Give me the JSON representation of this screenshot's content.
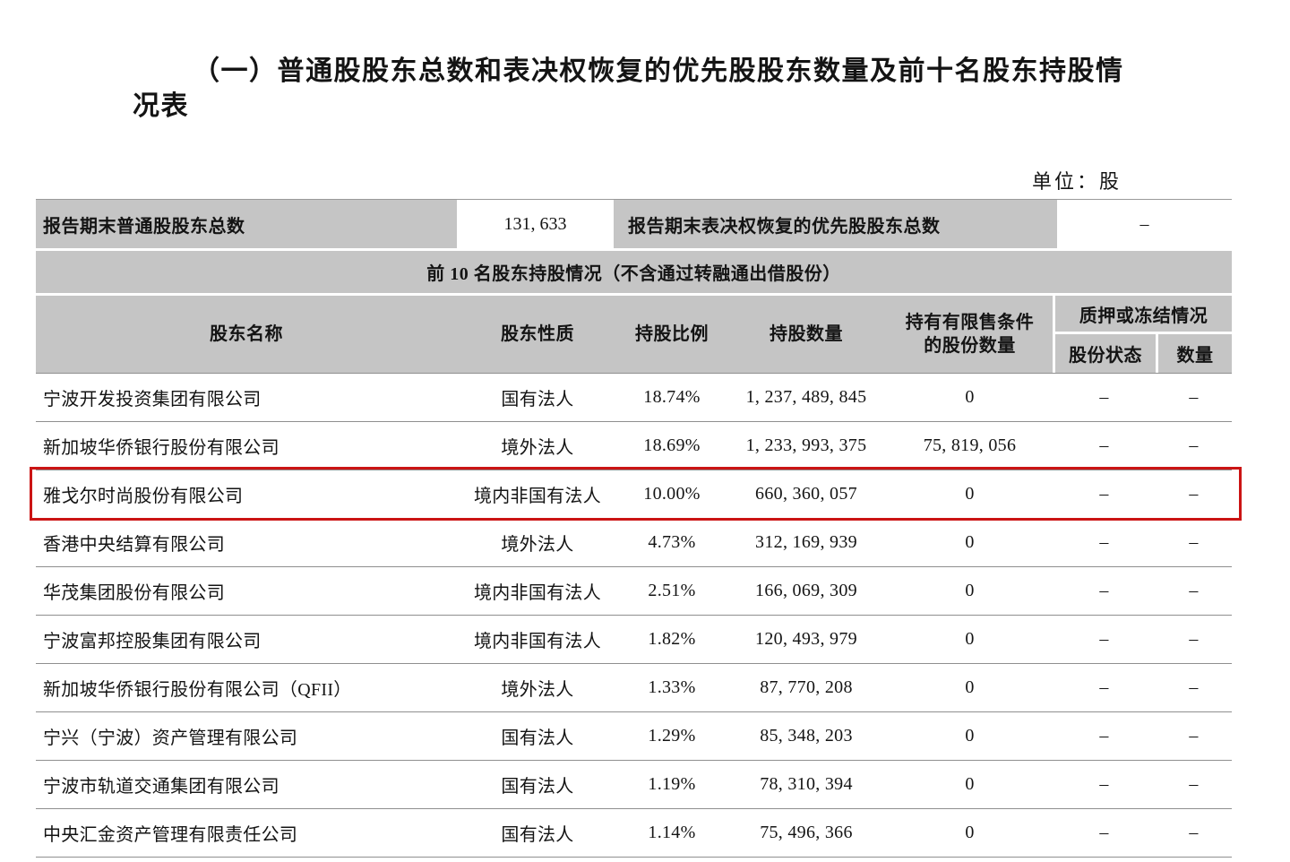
{
  "page": {
    "title_line1": "（一）普通股股东总数和表决权恢复的优先股股东数量及前十名股东持股情",
    "title_line2": "况表",
    "unit_label": "单位：股"
  },
  "colors": {
    "header_bg": "#c5c5c5",
    "highlight_border": "#cb1414",
    "row_line": "#8f8f8f"
  },
  "summary_row": {
    "common_label": "报告期末普通股股东总数",
    "common_value": "131, 633",
    "preferred_label": "报告期末表决权恢复的优先股股东总数",
    "preferred_value": "–"
  },
  "section_header": "前 10 名股东持股情况（不含通过转融通出借股份）",
  "table": {
    "col_name": "股东名称",
    "col_nature": "股东性质",
    "col_ratio": "持股比例",
    "col_shares": "持股数量",
    "col_restricted_l1": "持有有限售条件",
    "col_restricted_l2": "的股份数量",
    "col_pledge_group": "质押或冻结情况",
    "col_pledge_status": "股份状态",
    "col_pledge_qty": "数量"
  },
  "rows": [
    {
      "name": "宁波开发投资集团有限公司",
      "nature": "国有法人",
      "ratio": "18.74%",
      "shares": "1, 237, 489, 845",
      "restricted": "0",
      "status": "–",
      "qty": "–"
    },
    {
      "name": "新加坡华侨银行股份有限公司",
      "nature": "境外法人",
      "ratio": "18.69%",
      "shares": "1, 233, 993, 375",
      "restricted": "75, 819, 056",
      "status": "–",
      "qty": "–"
    },
    {
      "name": "雅戈尔时尚股份有限公司",
      "nature": "境内非国有法人",
      "ratio": "10.00%",
      "shares": "660, 360, 057",
      "restricted": "0",
      "status": "–",
      "qty": "–"
    },
    {
      "name": "香港中央结算有限公司",
      "nature": "境外法人",
      "ratio": "4.73%",
      "shares": "312, 169, 939",
      "restricted": "0",
      "status": "–",
      "qty": "–"
    },
    {
      "name": "华茂集团股份有限公司",
      "nature": "境内非国有法人",
      "ratio": "2.51%",
      "shares": "166, 069, 309",
      "restricted": "0",
      "status": "–",
      "qty": "–"
    },
    {
      "name": "宁波富邦控股集团有限公司",
      "nature": "境内非国有法人",
      "ratio": "1.82%",
      "shares": "120, 493, 979",
      "restricted": "0",
      "status": "–",
      "qty": "–"
    },
    {
      "name": "新加坡华侨银行股份有限公司（QFII）",
      "nature": "境外法人",
      "ratio": "1.33%",
      "shares": "87, 770, 208",
      "restricted": "0",
      "status": "–",
      "qty": "–"
    },
    {
      "name": "宁兴（宁波）资产管理有限公司",
      "nature": "国有法人",
      "ratio": "1.29%",
      "shares": "85, 348, 203",
      "restricted": "0",
      "status": "–",
      "qty": "–"
    },
    {
      "name": "宁波市轨道交通集团有限公司",
      "nature": "国有法人",
      "ratio": "1.19%",
      "shares": "78, 310, 394",
      "restricted": "0",
      "status": "–",
      "qty": "–"
    },
    {
      "name": "中央汇金资产管理有限责任公司",
      "nature": "国有法人",
      "ratio": "1.14%",
      "shares": "75, 496, 366",
      "restricted": "0",
      "status": "–",
      "qty": "–"
    }
  ]
}
